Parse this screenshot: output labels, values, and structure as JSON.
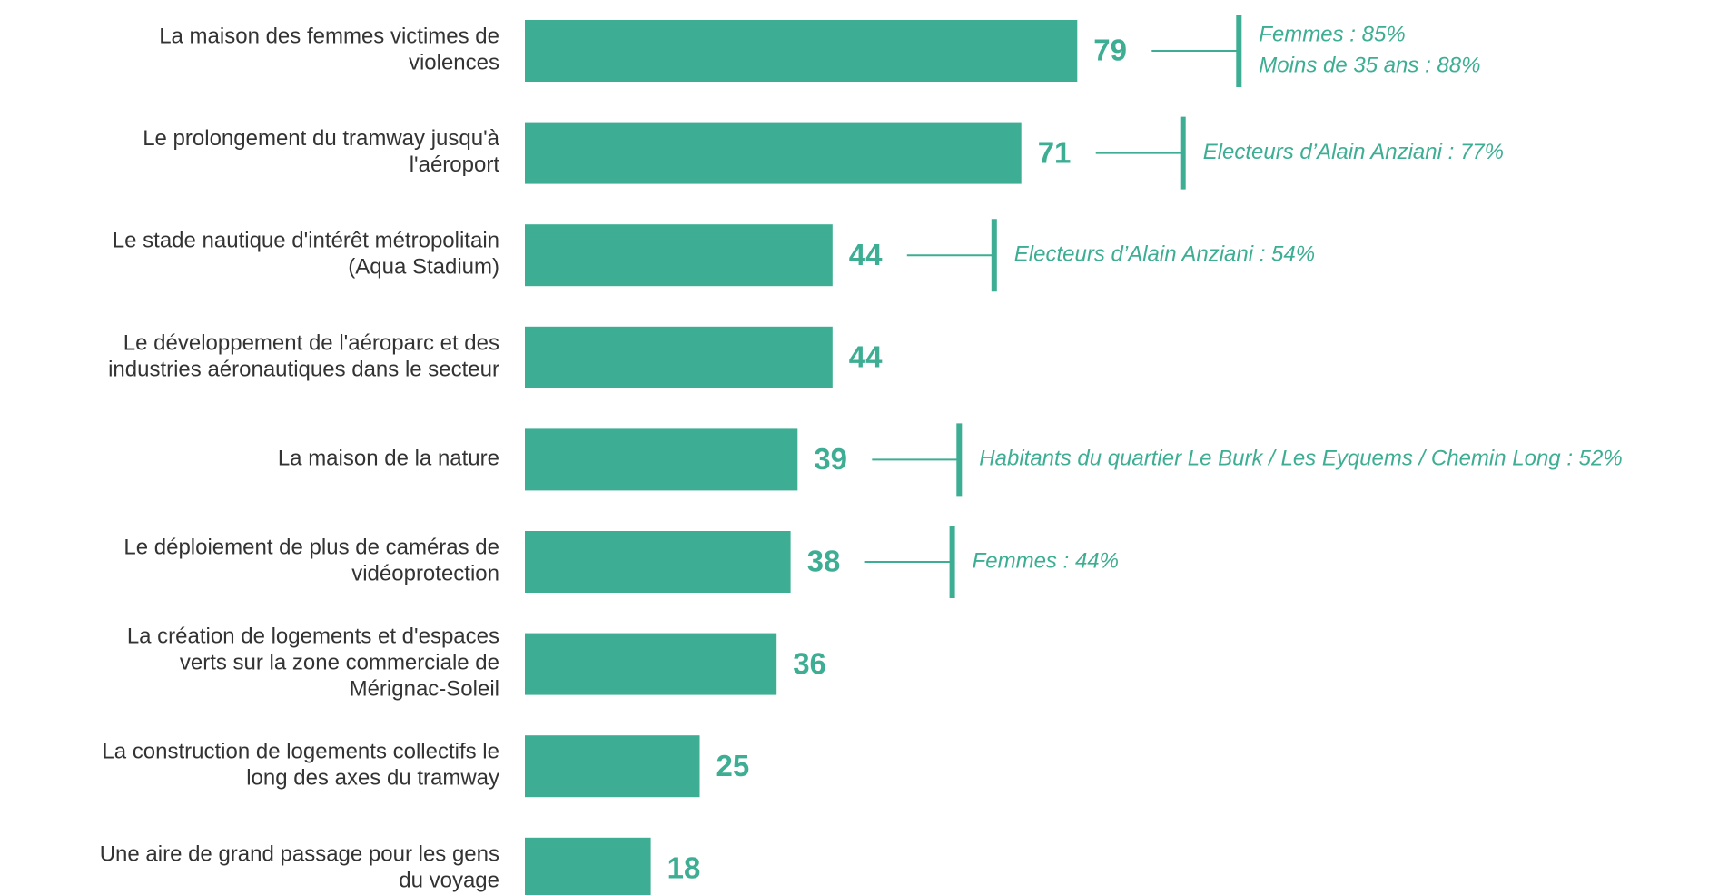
{
  "chart_data": {
    "type": "bar",
    "orientation": "horizontal",
    "color": "#3dae93",
    "categories": [
      "La maison des femmes victimes de\nviolences",
      "Le prolongement du tramway jusqu'à\nl'aéroport",
      "Le stade nautique d'intérêt métropolitain\n(Aqua Stadium)",
      "Le développement de l'aéroparc et des\nindustries aéronautiques dans le secteur",
      "La maison de la nature",
      "Le déploiement de plus de caméras de\nvidéoprotection",
      "La création de logements et d'espaces\nverts sur la zone commerciale de\nMérignac-Soleil",
      "La construction de logements collectifs le\nlong des axes du tramway",
      "Une aire de grand passage pour les gens\ndu voyage"
    ],
    "values": [
      79,
      71,
      44,
      44,
      39,
      38,
      36,
      25,
      18
    ],
    "annotations": [
      [
        "Femmes : 85%",
        "Moins de 35 ans : 88%"
      ],
      [
        "Electeurs d’Alain Anziani : 77%"
      ],
      [
        "Electeurs d’Alain Anziani : 54%"
      ],
      null,
      [
        "Habitants du quartier Le Burk / Les Eyquems / Chemin Long : 52%"
      ],
      [
        "Femmes : 44%"
      ],
      null,
      null,
      null
    ]
  }
}
